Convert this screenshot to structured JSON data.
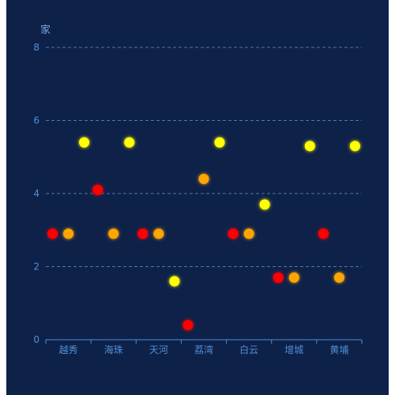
{
  "chart_data": {
    "type": "bar",
    "title": "",
    "xlabel": "",
    "ylabel": "家",
    "ylim": [
      0,
      8
    ],
    "yticks": [
      "0",
      "2",
      "4",
      "6",
      "8"
    ],
    "grid": true,
    "categories": [
      "越秀",
      "海珠",
      "天河",
      "荔湾",
      "白云",
      "增城",
      "黄埔"
    ],
    "series": [
      {
        "color": "#ff0000",
        "values": [
          2.9,
          4.1,
          2.9,
          0.4,
          2.9,
          1.7,
          2.9
        ]
      },
      {
        "color": "#ffa500",
        "values": [
          2.9,
          2.9,
          2.9,
          4.4,
          2.9,
          1.7,
          1.7
        ]
      },
      {
        "color": "#ffff00",
        "values": [
          5.4,
          5.4,
          1.6,
          5.4,
          3.7,
          5.3,
          5.3
        ]
      }
    ]
  },
  "colors": {
    "background": "#0e2149",
    "axis": "#4f8fd6",
    "grid": "#5a86c0"
  }
}
